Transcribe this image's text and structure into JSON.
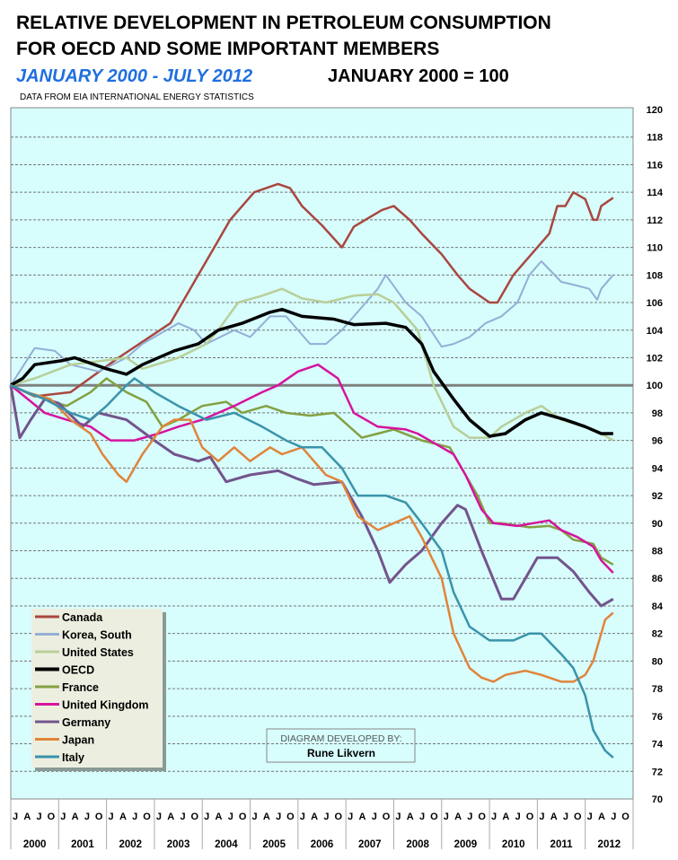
{
  "chart_data": {
    "type": "line",
    "title": "RELATIVE DEVELOPMENT IN PETROLEUM CONSUMPTION",
    "title_line2": "FOR OECD AND SOME IMPORTANT MEMBERS",
    "subtitle": "JANUARY 2000 - JULY 2012",
    "base_note": "JANUARY 2000 = 100",
    "source": "DATA FROM EIA INTERNATIONAL ENERGY STATISTICS",
    "x_unit": "months since January 2000",
    "xlim": [
      0,
      156
    ],
    "ylim": [
      70,
      120
    ],
    "yticks": [
      70,
      72,
      74,
      76,
      78,
      80,
      82,
      84,
      86,
      88,
      90,
      92,
      94,
      96,
      98,
      100,
      102,
      104,
      106,
      108,
      110,
      112,
      114,
      116,
      118,
      120
    ],
    "month_ticks": [
      "J",
      "A",
      "J",
      "O"
    ],
    "years": [
      "2000",
      "2001",
      "2002",
      "2003",
      "2004",
      "2005",
      "2006",
      "2007",
      "2008",
      "2009",
      "2010",
      "2011",
      "2012"
    ],
    "reference_line": 100,
    "grid": true,
    "legend_placement": "bottom-left",
    "credit_label": "DIAGRAM DEVELOPED BY:",
    "credit_name": "Rune Likvern",
    "series": [
      {
        "name": "Canada",
        "color": "#a9473f",
        "width": 2.5,
        "points": [
          [
            0,
            100
          ],
          [
            6,
            99.2
          ],
          [
            15,
            99.5
          ],
          [
            27,
            102
          ],
          [
            40,
            104.5
          ],
          [
            47,
            108
          ],
          [
            51,
            110
          ],
          [
            55,
            112
          ],
          [
            61,
            114
          ],
          [
            67,
            114.6
          ],
          [
            70,
            114.3
          ],
          [
            73,
            113
          ],
          [
            78,
            111.6
          ],
          [
            83,
            110
          ],
          [
            86,
            111.5
          ],
          [
            93,
            112.7
          ],
          [
            96,
            113
          ],
          [
            100,
            112
          ],
          [
            103,
            111
          ],
          [
            108,
            109.5
          ],
          [
            112,
            108
          ],
          [
            115,
            107
          ],
          [
            120,
            106
          ],
          [
            122,
            106
          ],
          [
            126,
            108
          ],
          [
            135,
            111
          ],
          [
            139,
            113
          ],
          [
            137,
            113
          ],
          [
            141,
            114
          ],
          [
            144,
            113.5
          ],
          [
            146,
            112
          ],
          [
            147,
            112
          ],
          [
            148,
            113
          ],
          [
            151,
            113.6
          ]
        ]
      },
      {
        "name": "Korea, South",
        "color": "#95aed6",
        "width": 2,
        "points": [
          [
            0,
            100
          ],
          [
            6,
            102.7
          ],
          [
            11,
            102.5
          ],
          [
            15,
            101.5
          ],
          [
            22,
            101
          ],
          [
            29,
            102
          ],
          [
            33,
            103
          ],
          [
            42,
            104.5
          ],
          [
            46,
            104
          ],
          [
            49,
            103
          ],
          [
            56,
            104
          ],
          [
            60,
            103.5
          ],
          [
            65,
            105
          ],
          [
            69,
            105
          ],
          [
            75,
            103
          ],
          [
            79,
            103
          ],
          [
            83,
            104
          ],
          [
            86,
            105
          ],
          [
            92,
            107
          ],
          [
            94,
            108
          ],
          [
            99,
            106
          ],
          [
            103,
            105
          ],
          [
            108,
            102.8
          ],
          [
            111,
            103
          ],
          [
            115,
            103.5
          ],
          [
            119,
            104.5
          ],
          [
            123,
            105
          ],
          [
            127,
            106
          ],
          [
            130,
            108
          ],
          [
            133,
            109
          ],
          [
            138,
            107.5
          ],
          [
            141,
            107.3
          ],
          [
            145,
            107
          ],
          [
            147,
            106.2
          ],
          [
            148,
            107
          ],
          [
            151,
            108
          ]
        ]
      },
      {
        "name": "United States",
        "color": "#b8cf98",
        "width": 2.5,
        "points": [
          [
            0,
            100
          ],
          [
            6,
            100.5
          ],
          [
            15,
            101.5
          ],
          [
            29,
            102
          ],
          [
            33,
            101.2
          ],
          [
            42,
            102
          ],
          [
            49,
            103
          ],
          [
            52,
            104
          ],
          [
            57,
            106
          ],
          [
            63,
            106.5
          ],
          [
            68,
            107
          ],
          [
            73,
            106.3
          ],
          [
            79,
            106
          ],
          [
            86,
            106.5
          ],
          [
            92,
            106.6
          ],
          [
            96,
            106
          ],
          [
            102,
            104
          ],
          [
            106,
            100
          ],
          [
            111,
            97
          ],
          [
            115,
            96.2
          ],
          [
            120,
            96.2
          ],
          [
            123,
            97
          ],
          [
            129,
            98
          ],
          [
            133,
            98.5
          ],
          [
            138,
            97.5
          ],
          [
            144,
            97
          ],
          [
            148,
            96.5
          ],
          [
            151,
            96
          ]
        ]
      },
      {
        "name": "OECD",
        "color": "#000000",
        "width": 3.5,
        "points": [
          [
            0,
            100
          ],
          [
            3,
            100.5
          ],
          [
            6,
            101.5
          ],
          [
            13,
            101.8
          ],
          [
            16,
            102
          ],
          [
            24,
            101.2
          ],
          [
            29,
            100.8
          ],
          [
            33,
            101.5
          ],
          [
            41,
            102.5
          ],
          [
            47,
            103
          ],
          [
            52,
            104
          ],
          [
            58,
            104.5
          ],
          [
            65,
            105.3
          ],
          [
            68,
            105.5
          ],
          [
            73,
            105
          ],
          [
            81,
            104.8
          ],
          [
            86,
            104.4
          ],
          [
            94,
            104.5
          ],
          [
            99,
            104.2
          ],
          [
            103,
            103
          ],
          [
            106,
            101
          ],
          [
            111,
            99
          ],
          [
            115,
            97.5
          ],
          [
            120,
            96.3
          ],
          [
            124,
            96.5
          ],
          [
            129,
            97.5
          ],
          [
            133,
            98
          ],
          [
            139,
            97.5
          ],
          [
            144,
            97
          ],
          [
            148,
            96.5
          ],
          [
            151,
            96.5
          ]
        ]
      },
      {
        "name": "France",
        "color": "#84a042",
        "width": 2.5,
        "points": [
          [
            0,
            100
          ],
          [
            4,
            99.5
          ],
          [
            8.5,
            99
          ],
          [
            14,
            98.5
          ],
          [
            20,
            99.5
          ],
          [
            24,
            100.5
          ],
          [
            29,
            99.5
          ],
          [
            34,
            98.8
          ],
          [
            38,
            97
          ],
          [
            42,
            97.5
          ],
          [
            48,
            98.5
          ],
          [
            54,
            98.8
          ],
          [
            58,
            98
          ],
          [
            64,
            98.5
          ],
          [
            69,
            98
          ],
          [
            75,
            97.8
          ],
          [
            81,
            98
          ],
          [
            88,
            96.2
          ],
          [
            92,
            96.5
          ],
          [
            96,
            96.8
          ],
          [
            103,
            96
          ],
          [
            110,
            95.5
          ],
          [
            112,
            94.5
          ],
          [
            117,
            92
          ],
          [
            120,
            90
          ],
          [
            123,
            90
          ],
          [
            130,
            89.7
          ],
          [
            135,
            89.8
          ],
          [
            138,
            89.5
          ],
          [
            141,
            88.8
          ],
          [
            146,
            88.5
          ],
          [
            148,
            87.5
          ],
          [
            151,
            87
          ]
        ]
      },
      {
        "name": "United Kingdom",
        "color": "#d6139d",
        "width": 2.5,
        "points": [
          [
            0,
            100
          ],
          [
            3,
            99.3
          ],
          [
            8.5,
            98
          ],
          [
            14,
            97.5
          ],
          [
            20,
            97
          ],
          [
            25,
            96
          ],
          [
            31,
            96
          ],
          [
            37,
            96.5
          ],
          [
            42,
            97
          ],
          [
            48,
            97.5
          ],
          [
            56,
            98.5
          ],
          [
            63,
            99.5
          ],
          [
            67,
            100
          ],
          [
            72,
            101
          ],
          [
            77,
            101.5
          ],
          [
            82,
            100.5
          ],
          [
            86,
            98
          ],
          [
            92,
            97
          ],
          [
            99,
            96.8
          ],
          [
            102,
            96.5
          ],
          [
            108,
            95.5
          ],
          [
            111,
            95
          ],
          [
            114,
            93.5
          ],
          [
            118,
            91
          ],
          [
            121,
            90
          ],
          [
            127,
            89.8
          ],
          [
            131,
            90
          ],
          [
            135,
            90.2
          ],
          [
            138,
            89.5
          ],
          [
            142,
            89
          ],
          [
            146,
            88.3
          ],
          [
            148,
            87.3
          ],
          [
            151,
            86.4
          ]
        ]
      },
      {
        "name": "Germany",
        "color": "#73548c",
        "width": 3,
        "points": [
          [
            0,
            100
          ],
          [
            2.25,
            96.2
          ],
          [
            5,
            97.5
          ],
          [
            8.5,
            99
          ],
          [
            12,
            98.7
          ],
          [
            18,
            97
          ],
          [
            22,
            98
          ],
          [
            29,
            97.5
          ],
          [
            36,
            96
          ],
          [
            41,
            95
          ],
          [
            47,
            94.5
          ],
          [
            50,
            94.8
          ],
          [
            54,
            93
          ],
          [
            60,
            93.5
          ],
          [
            67,
            93.8
          ],
          [
            72,
            93.2
          ],
          [
            76,
            92.8
          ],
          [
            83,
            93
          ],
          [
            88,
            90.5
          ],
          [
            92,
            88
          ],
          [
            95,
            85.7
          ],
          [
            99,
            87
          ],
          [
            103,
            88
          ],
          [
            108,
            90
          ],
          [
            112,
            91.3
          ],
          [
            114,
            91
          ],
          [
            118,
            88
          ],
          [
            123,
            84.5
          ],
          [
            126,
            84.5
          ],
          [
            129,
            86
          ],
          [
            132,
            87.5
          ],
          [
            137,
            87.5
          ],
          [
            141,
            86.5
          ],
          [
            145,
            85
          ],
          [
            148,
            84
          ],
          [
            151,
            84.5
          ]
        ]
      },
      {
        "name": "Japan",
        "color": "#e0843a",
        "width": 2.5,
        "points": [
          [
            0,
            100
          ],
          [
            4,
            99.5
          ],
          [
            10,
            99
          ],
          [
            15,
            97.5
          ],
          [
            20,
            96.5
          ],
          [
            23,
            95
          ],
          [
            27,
            93.5
          ],
          [
            29,
            93
          ],
          [
            33,
            95
          ],
          [
            38,
            97
          ],
          [
            41,
            97.5
          ],
          [
            45,
            97.5
          ],
          [
            48,
            95.5
          ],
          [
            52,
            94.5
          ],
          [
            56,
            95.5
          ],
          [
            60,
            94.5
          ],
          [
            65,
            95.5
          ],
          [
            68,
            95
          ],
          [
            73,
            95.5
          ],
          [
            79,
            93.5
          ],
          [
            83,
            93
          ],
          [
            87,
            90.5
          ],
          [
            92,
            89.5
          ],
          [
            96,
            90
          ],
          [
            100,
            90.5
          ],
          [
            103,
            89
          ],
          [
            108,
            86
          ],
          [
            111,
            82
          ],
          [
            115,
            79.5
          ],
          [
            118,
            78.8
          ],
          [
            121,
            78.5
          ],
          [
            124,
            79
          ],
          [
            129,
            79.3
          ],
          [
            133,
            79
          ],
          [
            138,
            78.5
          ],
          [
            141,
            78.5
          ],
          [
            144,
            79
          ],
          [
            146,
            80
          ],
          [
            148,
            82
          ],
          [
            149,
            83
          ],
          [
            151,
            83.5
          ]
        ]
      },
      {
        "name": "Italy",
        "color": "#3a93ab",
        "width": 2.5,
        "points": [
          [
            0,
            100
          ],
          [
            4,
            99.5
          ],
          [
            8.5,
            99
          ],
          [
            15,
            98
          ],
          [
            20,
            97.5
          ],
          [
            24,
            98.5
          ],
          [
            29,
            100
          ],
          [
            31,
            100.5
          ],
          [
            36,
            99.5
          ],
          [
            42,
            98.5
          ],
          [
            49,
            97.5
          ],
          [
            56,
            98
          ],
          [
            63,
            97
          ],
          [
            69,
            96
          ],
          [
            73,
            95.5
          ],
          [
            78,
            95.5
          ],
          [
            83,
            94
          ],
          [
            87,
            92
          ],
          [
            94,
            92
          ],
          [
            99,
            91.5
          ],
          [
            103,
            90
          ],
          [
            108,
            88
          ],
          [
            111,
            85
          ],
          [
            115,
            82.5
          ],
          [
            120,
            81.5
          ],
          [
            126,
            81.5
          ],
          [
            130,
            82
          ],
          [
            133,
            82
          ],
          [
            138,
            80.5
          ],
          [
            141,
            79.5
          ],
          [
            144,
            77.5
          ],
          [
            146,
            75
          ],
          [
            149,
            73.5
          ],
          [
            151,
            73
          ]
        ]
      }
    ]
  }
}
